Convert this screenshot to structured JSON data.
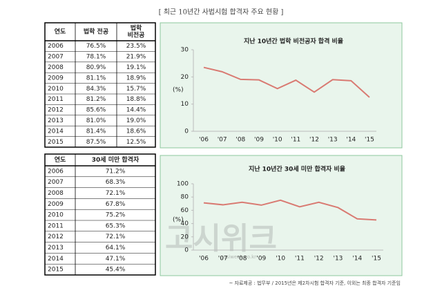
{
  "title": "[ 최근 10년간 사법시험 합격자 주요 현황 ]",
  "table1": {
    "header": [
      "연도",
      "법학 전공",
      [
        "법학",
        "비전공"
      ]
    ],
    "rows": [
      [
        "2006",
        "76.5%",
        "23.5%"
      ],
      [
        "2007",
        "78.1%",
        "21.9%"
      ],
      [
        "2008",
        "80.9%",
        "19.1%"
      ],
      [
        "2009",
        "81.1%",
        "18.9%"
      ],
      [
        "2010",
        "84.3%",
        "15.7%"
      ],
      [
        "2011",
        "81.2%",
        "18.8%"
      ],
      [
        "2012",
        "85.6%",
        "14.4%"
      ],
      [
        "2013",
        "81.0%",
        "19.0%"
      ],
      [
        "2014",
        "81.4%",
        "18.6%"
      ],
      [
        "2015",
        "87.5%",
        "12.5%"
      ]
    ]
  },
  "table2": {
    "header": [
      "연도",
      "30세 미만 합격자"
    ],
    "rows": [
      [
        "2006",
        "71.2%"
      ],
      [
        "2007",
        "68.3%"
      ],
      [
        "2008",
        "72.1%"
      ],
      [
        "2009",
        "67.8%"
      ],
      [
        "2010",
        "75.2%"
      ],
      [
        "2011",
        "65.3%"
      ],
      [
        "2012",
        "72.1%"
      ],
      [
        "2013",
        "64.1%"
      ],
      [
        "2014",
        "47.1%"
      ],
      [
        "2015",
        "45.4%"
      ]
    ]
  },
  "chart_data": [
    {
      "type": "line",
      "title": "지난 10년간 법학 비전공자 합격 비율",
      "ylabel": "(%)",
      "categories": [
        "'06",
        "'07",
        "'08",
        "'09",
        "'10",
        "'11",
        "'12",
        "'13",
        "'14",
        "'15"
      ],
      "values": [
        23.5,
        21.9,
        19.1,
        18.9,
        15.7,
        18.8,
        14.4,
        19.0,
        18.6,
        12.5
      ],
      "color": "#d97a72",
      "ylim": [
        0,
        30
      ],
      "yticks": [
        0,
        10,
        20,
        30
      ]
    },
    {
      "type": "line",
      "title": "지난 10년간 30세 미만 합격자 비율",
      "ylabel": "(%)",
      "categories": [
        "'06",
        "'07",
        "'08",
        "'09",
        "'10",
        "'11",
        "'12",
        "'13",
        "'14",
        "'15"
      ],
      "values": [
        71.2,
        68.3,
        72.1,
        67.8,
        75.2,
        65.3,
        72.1,
        64.1,
        47.1,
        45.4
      ],
      "color": "#d97a72",
      "ylim": [
        0,
        100
      ],
      "yticks": [
        0,
        20,
        40,
        60,
        80,
        100
      ]
    }
  ],
  "watermark": "고시위크",
  "watermark_url": "gosiweek.co.kr",
  "source": "~ 자료제공 : 법무부 / 2015년은 제2차시험 합격자 기준, 이외는 최종 합격자 기준임"
}
